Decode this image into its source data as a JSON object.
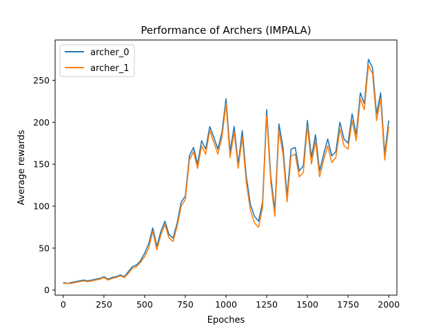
{
  "chart_data": {
    "type": "line",
    "title": "Performance of Archers (IMPALA)",
    "xlabel": "Epoches",
    "ylabel": "Average rewards",
    "xlim": [
      -50,
      2050
    ],
    "ylim": [
      -6,
      298
    ],
    "xticks": [
      0,
      250,
      500,
      750,
      1000,
      1250,
      1500,
      1750,
      2000
    ],
    "yticks": [
      0,
      50,
      100,
      150,
      200,
      250
    ],
    "grid": false,
    "legend_position": "top-left",
    "series": [
      {
        "name": "archer_0",
        "color": "#1f77b4",
        "x": [
          0,
          25,
          50,
          75,
          100,
          125,
          150,
          175,
          200,
          225,
          250,
          275,
          300,
          325,
          350,
          375,
          400,
          425,
          450,
          475,
          500,
          525,
          550,
          575,
          600,
          625,
          650,
          675,
          700,
          725,
          750,
          775,
          800,
          825,
          850,
          875,
          900,
          925,
          950,
          975,
          1000,
          1025,
          1050,
          1075,
          1100,
          1125,
          1150,
          1175,
          1200,
          1225,
          1250,
          1275,
          1300,
          1325,
          1350,
          1375,
          1400,
          1425,
          1450,
          1475,
          1500,
          1525,
          1550,
          1575,
          1600,
          1625,
          1650,
          1675,
          1700,
          1725,
          1750,
          1775,
          1800,
          1825,
          1850,
          1875,
          1900,
          1925,
          1950,
          1975,
          2000
        ],
        "y": [
          9,
          8,
          9,
          10,
          11,
          12,
          11,
          12,
          13,
          14,
          16,
          13,
          15,
          16,
          18,
          16,
          22,
          28,
          30,
          35,
          44,
          55,
          74,
          52,
          70,
          82,
          66,
          62,
          80,
          105,
          112,
          160,
          170,
          150,
          178,
          168,
          195,
          182,
          168,
          188,
          228,
          165,
          195,
          150,
          190,
          135,
          102,
          88,
          82,
          105,
          215,
          135,
          95,
          198,
          170,
          112,
          168,
          170,
          142,
          148,
          202,
          158,
          185,
          142,
          162,
          180,
          160,
          165,
          200,
          180,
          175,
          210,
          185,
          235,
          222,
          275,
          265,
          210,
          235,
          162,
          202
        ]
      },
      {
        "name": "archer_1",
        "color": "#ff7f0e",
        "x": [
          0,
          25,
          50,
          75,
          100,
          125,
          150,
          175,
          200,
          225,
          250,
          275,
          300,
          325,
          350,
          375,
          400,
          425,
          450,
          475,
          500,
          525,
          550,
          575,
          600,
          625,
          650,
          675,
          700,
          725,
          750,
          775,
          800,
          825,
          850,
          875,
          900,
          925,
          950,
          975,
          1000,
          1025,
          1050,
          1075,
          1100,
          1125,
          1150,
          1175,
          1200,
          1225,
          1250,
          1275,
          1300,
          1325,
          1350,
          1375,
          1400,
          1425,
          1450,
          1475,
          1500,
          1525,
          1550,
          1575,
          1600,
          1625,
          1650,
          1675,
          1700,
          1725,
          1750,
          1775,
          1800,
          1825,
          1850,
          1875,
          1900,
          1925,
          1950,
          1975,
          2000
        ],
        "y": [
          8,
          8,
          8,
          9,
          10,
          11,
          10,
          11,
          12,
          13,
          15,
          12,
          14,
          15,
          17,
          15,
          20,
          26,
          28,
          33,
          40,
          50,
          70,
          48,
          66,
          78,
          62,
          58,
          76,
          100,
          108,
          155,
          165,
          145,
          172,
          162,
          190,
          176,
          162,
          182,
          222,
          158,
          188,
          145,
          182,
          128,
          95,
          80,
          75,
          98,
          208,
          128,
          88,
          190,
          162,
          105,
          160,
          162,
          135,
          140,
          195,
          150,
          178,
          135,
          155,
          172,
          152,
          158,
          192,
          172,
          168,
          202,
          178,
          228,
          215,
          268,
          258,
          202,
          228,
          155,
          195
        ]
      }
    ]
  }
}
